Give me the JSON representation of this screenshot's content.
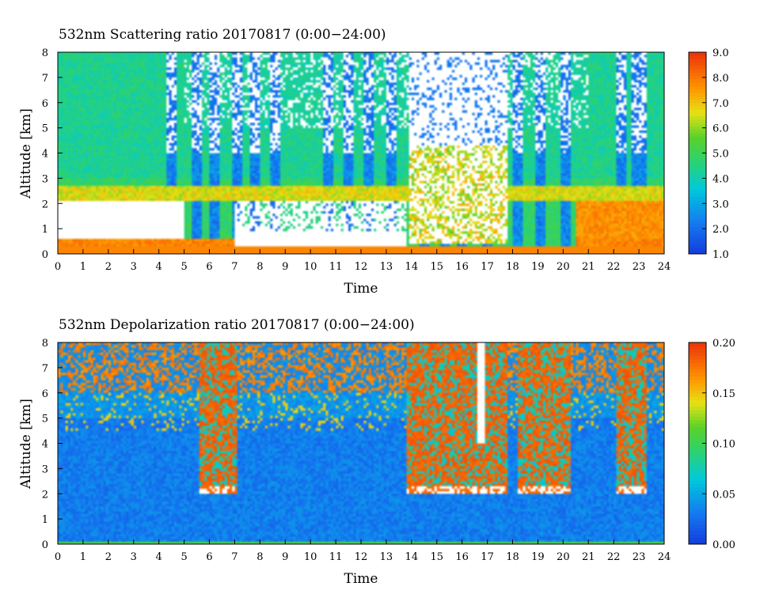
{
  "chart_data": [
    {
      "type": "heatmap",
      "title": "532nm Scattering ratio  20170817 (0:00−24:00)",
      "xlabel": "Time",
      "ylabel": "Altitude [km]",
      "xlim": [
        0,
        24
      ],
      "ylim": [
        0,
        8
      ],
      "x_ticks": [
        "0",
        "1",
        "2",
        "3",
        "4",
        "5",
        "6",
        "7",
        "8",
        "9",
        "10",
        "11",
        "12",
        "13",
        "14",
        "15",
        "16",
        "17",
        "18",
        "19",
        "20",
        "21",
        "22",
        "23",
        "24"
      ],
      "y_ticks": [
        "0",
        "1",
        "2",
        "3",
        "4",
        "5",
        "6",
        "7",
        "8"
      ],
      "colorbar": {
        "min": 1.0,
        "max": 9.0,
        "ticks": [
          "1.0",
          "2.0",
          "3.0",
          "4.0",
          "5.0",
          "6.0",
          "7.0",
          "8.0",
          "9.0"
        ]
      },
      "features": {
        "background_upper_value": 4.3,
        "boundary_layer_top_km": 2.2,
        "saturated_cloud_layer_km": [
          0.6,
          2.1
        ],
        "surface_layer_km": 0.3,
        "low_signal_columns_hours": [
          4.5,
          5.5,
          6.2,
          7.1,
          7.8,
          8.6,
          10.7,
          11.5,
          12.3,
          13.2,
          14.5,
          15.3,
          16.0,
          17.0,
          18.2,
          19.1,
          20.1,
          22.3,
          22.9,
          23.1
        ],
        "cloud_hole_window_hours": [
          13.9,
          17.8
        ]
      }
    },
    {
      "type": "heatmap",
      "title": "532nm Depolarization ratio  20170817 (0:00−24:00)",
      "xlabel": "Time",
      "ylabel": "Altitude [km]",
      "xlim": [
        0,
        24
      ],
      "ylim": [
        0,
        8
      ],
      "x_ticks": [
        "0",
        "1",
        "2",
        "3",
        "4",
        "5",
        "6",
        "7",
        "8",
        "9",
        "10",
        "11",
        "12",
        "13",
        "14",
        "15",
        "16",
        "17",
        "18",
        "19",
        "20",
        "21",
        "22",
        "23",
        "24"
      ],
      "y_ticks": [
        "0",
        "1",
        "2",
        "3",
        "4",
        "5",
        "6",
        "7",
        "8"
      ],
      "colorbar": {
        "min": 0.0,
        "max": 0.2,
        "ticks": [
          "0.00",
          "0.05",
          "0.10",
          "0.15",
          "0.20"
        ]
      },
      "features": {
        "background_value": 0.02,
        "high_depol_windows_hours": [
          [
            5.6,
            7.1
          ],
          [
            13.8,
            17.8
          ],
          [
            18.2,
            20.3
          ],
          [
            22.1,
            23.3
          ]
        ],
        "cloud_base_km": 2.0
      }
    }
  ]
}
